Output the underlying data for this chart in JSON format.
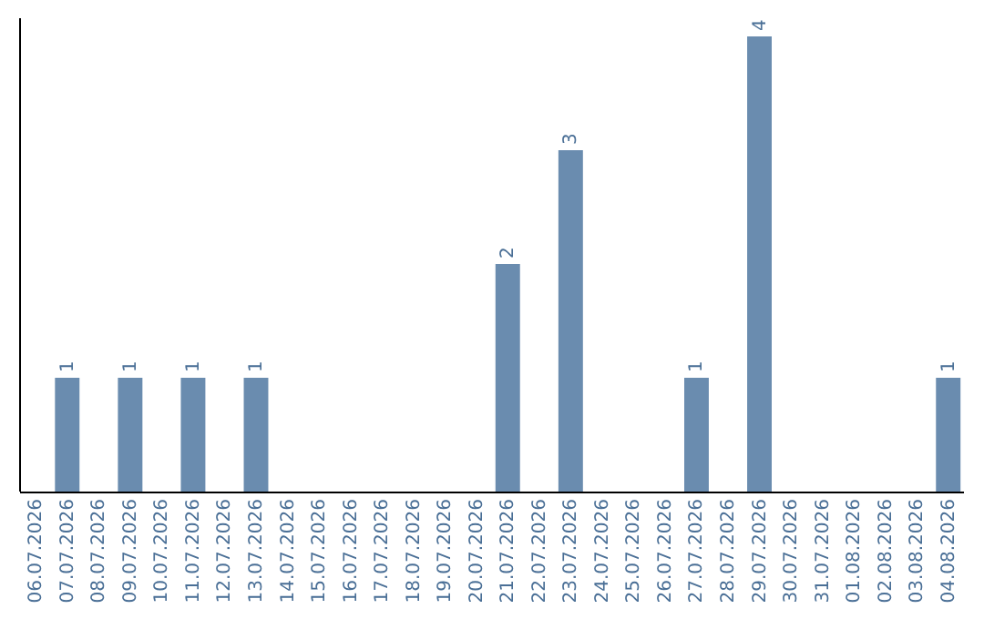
{
  "chart_data": {
    "type": "bar",
    "categories": [
      "06.07.2026",
      "07.07.2026",
      "08.07.2026",
      "09.07.2026",
      "10.07.2026",
      "11.07.2026",
      "12.07.2026",
      "13.07.2026",
      "14.07.2026",
      "15.07.2026",
      "16.07.2026",
      "17.07.2026",
      "18.07.2026",
      "19.07.2026",
      "20.07.2026",
      "21.07.2026",
      "22.07.2026",
      "23.07.2026",
      "24.07.2026",
      "25.07.2026",
      "26.07.2026",
      "27.07.2026",
      "28.07.2026",
      "29.07.2026",
      "30.07.2026",
      "31.07.2026",
      "01.08.2026",
      "02.08.2026",
      "03.08.2026",
      "04.08.2026"
    ],
    "values": [
      0,
      1,
      0,
      1,
      0,
      1,
      0,
      1,
      0,
      0,
      0,
      0,
      0,
      0,
      0,
      2,
      0,
      3,
      0,
      0,
      0,
      1,
      0,
      4,
      0,
      0,
      0,
      0,
      0,
      1
    ],
    "value_labels": [
      null,
      "1",
      null,
      "1",
      null,
      "1",
      null,
      "1",
      null,
      null,
      null,
      null,
      null,
      null,
      null,
      "2",
      null,
      "3",
      null,
      null,
      null,
      "1",
      null,
      "4",
      null,
      null,
      null,
      null,
      null,
      "1"
    ],
    "color": "#6a8caf"
  }
}
